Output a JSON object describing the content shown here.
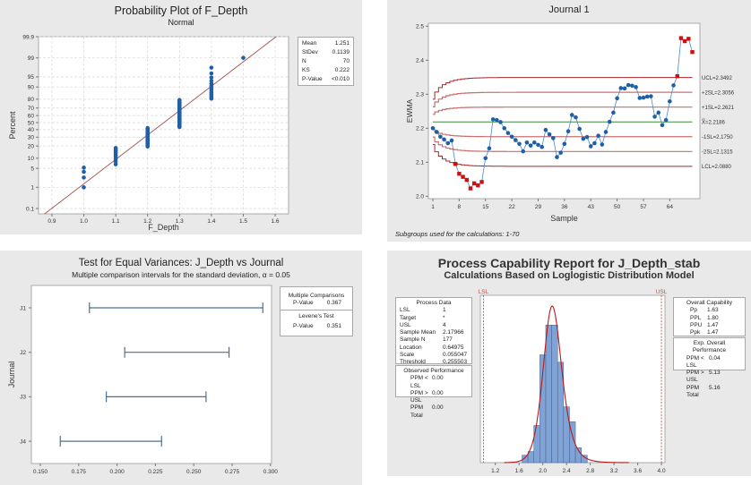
{
  "chart_data": [
    {
      "type": "scatter",
      "title": "Probability Plot of F_Depth",
      "subtitle": "Normal",
      "xlabel": "F_Depth",
      "ylabel": "Percent",
      "xlim": [
        0.858,
        1.642
      ],
      "xticks": [
        "0.9",
        "1.0",
        "1.1",
        "1.2",
        "1.3",
        "1.4",
        "1.5",
        "1.6"
      ],
      "yticks": [
        "0.1",
        "1",
        "5",
        "10",
        "20",
        "30",
        "40",
        "50",
        "60",
        "70",
        "80",
        "90",
        "95",
        "99",
        "99.9"
      ],
      "groups": [
        {
          "x": 1.0,
          "count": 4
        },
        {
          "x": 1.1,
          "count": 9
        },
        {
          "x": 1.2,
          "count": 17
        },
        {
          "x": 1.3,
          "count": 26
        },
        {
          "x": 1.4,
          "count": 13
        },
        {
          "x": 1.5,
          "count": 1
        }
      ],
      "fit": {
        "mean": 1.251,
        "sd": 0.1139
      },
      "stats": [
        {
          "label": "Mean",
          "value": "1.251"
        },
        {
          "label": "StDev",
          "value": "0.1139"
        },
        {
          "label": "N",
          "value": "70"
        },
        {
          "label": "KS",
          "value": "0.222"
        },
        {
          "label": "P-Value",
          "value": "<0.010"
        }
      ],
      "colors": {
        "points": "#1f5fa6",
        "fit": "#a0504d"
      }
    },
    {
      "type": "line",
      "title": "Journal 1",
      "xlabel": "Sample",
      "ylabel": "EWMA",
      "ylim": [
        2.0,
        2.5
      ],
      "xticks": [
        "1",
        "8",
        "15",
        "22",
        "29",
        "36",
        "43",
        "50",
        "57",
        "64"
      ],
      "yticks": [
        "2.0",
        "2.1",
        "2.2",
        "2.3",
        "2.4",
        "2.5"
      ],
      "values": [
        2.2,
        2.189,
        2.175,
        2.167,
        2.156,
        2.164,
        2.095,
        2.066,
        2.057,
        2.048,
        2.023,
        2.038,
        2.032,
        2.042,
        2.112,
        2.141,
        2.226,
        2.224,
        2.218,
        2.2,
        2.186,
        2.175,
        2.165,
        2.154,
        2.132,
        2.158,
        2.149,
        2.158,
        2.151,
        2.145,
        2.195,
        2.182,
        2.171,
        2.115,
        2.128,
        2.154,
        2.191,
        2.239,
        2.232,
        2.198,
        2.169,
        2.174,
        2.147,
        2.156,
        2.178,
        2.152,
        2.189,
        2.219,
        2.246,
        2.288,
        2.318,
        2.317,
        2.327,
        2.325,
        2.321,
        2.289,
        2.29,
        2.293,
        2.294,
        2.234,
        2.246,
        2.209,
        2.224,
        2.279,
        2.326,
        2.353,
        2.465,
        2.456,
        2.463,
        2.424
      ],
      "out_of_control": [
        7,
        8,
        9,
        10,
        11,
        12,
        13,
        14,
        66,
        67,
        68,
        69,
        70
      ],
      "center": {
        "label": "X̿=2.2186",
        "value": 2.2186
      },
      "limits": [
        {
          "label": "UCL=2.3492",
          "value": 2.3492,
          "k": 3
        },
        {
          "label": "+2SL=2.3056",
          "value": 2.3056,
          "k": 2
        },
        {
          "label": "+1SL=2.2621",
          "value": 2.2621,
          "k": 1
        },
        {
          "label": "-1SL=2.1750",
          "value": 2.175,
          "k": -1
        },
        {
          "label": "-2SL=2.1315",
          "value": 2.1315,
          "k": -2
        },
        {
          "label": "LCL=2.0880",
          "value": 2.088,
          "k": -3
        }
      ],
      "footnote": "Subgroups used for the calculations: 1-70",
      "colors": {
        "points": "#1f5fa6",
        "alarm": "#cc1111",
        "center": "#3a8a3a",
        "limit": "#b04040"
      }
    },
    {
      "type": "interval",
      "title": "Test for Equal Variances: J_Depth vs Journal",
      "subtitle": "Multiple comparison intervals for the standard deviation, α = 0.05",
      "ylabel": "Journal",
      "xlim": [
        0.1435,
        0.3015
      ],
      "xticks": [
        "0.150",
        "0.175",
        "0.200",
        "0.225",
        "0.250",
        "0.275",
        "0.300"
      ],
      "categories": [
        "J1",
        "J2",
        "J3",
        "J4"
      ],
      "intervals": [
        [
          0.182,
          0.295
        ],
        [
          0.205,
          0.273
        ],
        [
          0.193,
          0.258
        ],
        [
          0.163,
          0.229
        ]
      ],
      "legend": {
        "mc_title": "Multiple Comparisons",
        "mc_label": "P-Value",
        "mc_value": "0.367",
        "lev_title": "Levene's Test",
        "lev_label": "P-Value",
        "lev_value": "0.351"
      },
      "colors": {
        "interval": "#4a7196"
      }
    },
    {
      "type": "bar",
      "title": "Process Capability Report for J_Depth_stab",
      "subtitle": "Calculations Based on Loglogistic Distribution Model",
      "xticks": [
        "1.2",
        "1.6",
        "2.0",
        "2.4",
        "2.8",
        "3.2",
        "3.6",
        "4.0"
      ],
      "bin_width": 0.1,
      "bin_centers": [
        1.7,
        1.8,
        1.9,
        2.0,
        2.1,
        2.2,
        2.3,
        2.4,
        2.5,
        2.6,
        2.7
      ],
      "counts": [
        2,
        3,
        10,
        29,
        37,
        37,
        27,
        15,
        11,
        4,
        2
      ],
      "ylim": [
        0,
        45
      ],
      "lsl": {
        "label": "LSL",
        "value": 1
      },
      "usl": {
        "label": "USL",
        "value": 4
      },
      "process_data": {
        "title": "Process Data",
        "rows": [
          {
            "label": "LSL",
            "value": "1"
          },
          {
            "label": "Target",
            "value": "*"
          },
          {
            "label": "USL",
            "value": "4"
          },
          {
            "label": "Sample Mean",
            "value": "2.17966"
          },
          {
            "label": "Sample N",
            "value": "177"
          },
          {
            "label": "Location",
            "value": "0.64975"
          },
          {
            "label": "Scale",
            "value": "0.055047"
          },
          {
            "label": "Threshold",
            "value": "0.255503"
          }
        ]
      },
      "observed": {
        "title": "Observed Performance",
        "rows": [
          {
            "label": "PPM < LSL",
            "value": "0.00"
          },
          {
            "label": "PPM > USL",
            "value": "0.00"
          },
          {
            "label": "PPM Total",
            "value": "0.00"
          }
        ]
      },
      "overall_capability": {
        "title": "Overall Capability",
        "rows": [
          {
            "label": "Pp",
            "value": "1.63"
          },
          {
            "label": "PPL",
            "value": "1.80"
          },
          {
            "label": "PPU",
            "value": "1.47"
          },
          {
            "label": "Ppk",
            "value": "1.47"
          }
        ]
      },
      "expected": {
        "title": "Exp. Overall Performance",
        "rows": [
          {
            "label": "PPM < LSL",
            "value": "0.04"
          },
          {
            "label": "PPM > USL",
            "value": "5.13"
          },
          {
            "label": "PPM Total",
            "value": "5.16"
          }
        ]
      },
      "colors": {
        "bars": "#7fa3d6",
        "curve": "#b01c1c",
        "spec": "#c0504d"
      }
    }
  ]
}
